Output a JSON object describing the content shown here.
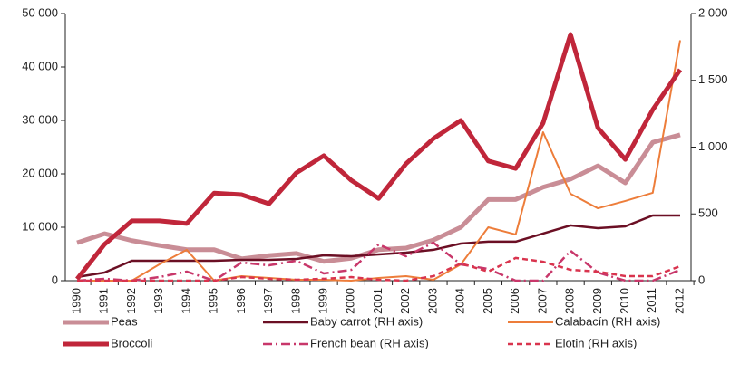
{
  "chart_data": {
    "type": "line",
    "categories": [
      "1990",
      "1991",
      "1992",
      "1993",
      "1994",
      "1995",
      "1996",
      "1997",
      "1998",
      "1999",
      "2000",
      "2001",
      "2002",
      "2003",
      "2004",
      "2005",
      "2006",
      "2007",
      "2008",
      "2009",
      "2010",
      "2011",
      "2012"
    ],
    "ylim": [
      0,
      50000
    ],
    "yticks": [
      0,
      {
        "value": 10000,
        "label": "10 000"
      },
      {
        "value": 20000,
        "label": "20 000"
      },
      {
        "value": 30000,
        "label": "30 000"
      },
      {
        "value": 40000,
        "label": "40 000"
      },
      {
        "value": 50000,
        "label": "50 000"
      }
    ],
    "y2lim": [
      0,
      2000
    ],
    "y2ticks": [
      0,
      500,
      {
        "value": 1000,
        "label": "1 000"
      },
      {
        "value": 1500,
        "label": "1 500"
      },
      {
        "value": 2000,
        "label": "2 000"
      }
    ],
    "series": [
      {
        "name": "Peas",
        "color": "#c98d96",
        "width": 5,
        "dash": "solid",
        "values": [
          7100,
          8800,
          7500,
          6600,
          5800,
          5800,
          4100,
          4700,
          5100,
          3600,
          4200,
          5800,
          6100,
          7600,
          10000,
          15200,
          15200,
          17500,
          19000,
          21500,
          18300,
          25900,
          27300
        ]
      },
      {
        "name": "Baby carrot (RH axis)",
        "axis": "y2",
        "color": "#6b0f24",
        "width": 2.5,
        "dash": "solid",
        "values": [
          27,
          61,
          149,
          149,
          149,
          149,
          156,
          156,
          163,
          190,
          183,
          197,
          210,
          231,
          278,
          292,
          292,
          353,
          414,
          393,
          407,
          488,
          488
        ]
      },
      {
        "name": "Calabacín (RH axis)",
        "axis": "y2",
        "color": "#ed7d3a",
        "width": 2,
        "dash": "solid",
        "values": [
          0,
          0,
          0,
          122,
          231,
          0,
          34,
          20,
          7,
          7,
          0,
          20,
          34,
          7,
          122,
          400,
          346,
          1112,
          651,
          542,
          597,
          658,
          1800
        ]
      },
      {
        "name": "Broccoli",
        "color": "#c0263a",
        "width": 5,
        "dash": "solid",
        "values": [
          300,
          6800,
          11200,
          11200,
          10700,
          16400,
          16100,
          14400,
          20200,
          23400,
          18800,
          15400,
          21900,
          26600,
          30000,
          22400,
          21000,
          29500,
          46100,
          28600,
          22700,
          32000,
          39500
        ]
      },
      {
        "name": "French bean (RH axis)",
        "axis": "y2",
        "color": "#c8376a",
        "width": 2.5,
        "dash": "dashdot",
        "values": [
          0,
          14,
          0,
          27,
          68,
          0,
          136,
          115,
          149,
          54,
          81,
          271,
          183,
          285,
          122,
          88,
          0,
          0,
          224,
          61,
          0,
          0,
          81
        ]
      },
      {
        "name": "Elotin (RH axis)",
        "axis": "y2",
        "color": "#d9344e",
        "width": 2.5,
        "dash": "dashed",
        "values": [
          0,
          0,
          0,
          0,
          0,
          0,
          27,
          14,
          7,
          14,
          27,
          7,
          0,
          34,
          129,
          68,
          170,
          142,
          81,
          68,
          34,
          34,
          108
        ]
      }
    ]
  }
}
